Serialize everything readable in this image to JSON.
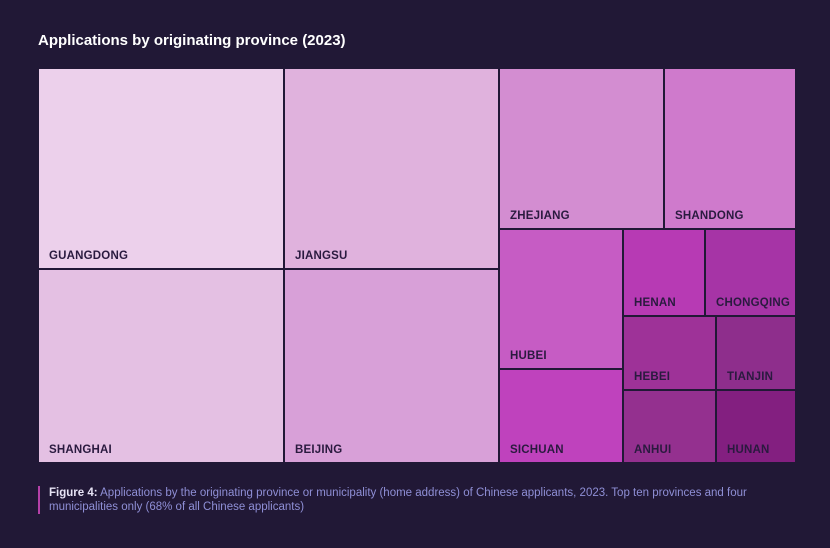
{
  "title": "Applications by originating province (2023)",
  "chart_data": {
    "type": "treemap",
    "title": "Applications by originating province (2023)",
    "unit": "relative share of Chinese applicants (approximate, estimated from tile areas)",
    "items": [
      {
        "name": "GUANGDONG",
        "value": 25.6,
        "color": "#ecd0eb"
      },
      {
        "name": "SHANGHAI",
        "value": 20.7,
        "color": "#e4c0e3"
      },
      {
        "name": "JIANGSU",
        "value": 22.4,
        "color": "#e0b2dd"
      },
      {
        "name": "BEIJING",
        "value": 18.2,
        "color": "#d8a0d8"
      },
      {
        "name": "ZHEJIANG",
        "value": 10.6,
        "color": "#d38dd1"
      },
      {
        "name": "SHANDONG",
        "value": 8.4,
        "color": "#cf7acc"
      },
      {
        "name": "HUBEI",
        "value": 7.1,
        "color": "#c65cc4"
      },
      {
        "name": "SICHUAN",
        "value": 4.9,
        "color": "#bf42bd"
      },
      {
        "name": "HENAN",
        "value": 4.3,
        "color": "#b73ab4"
      },
      {
        "name": "CHONGQING",
        "value": 3.8,
        "color": "#a634a6"
      },
      {
        "name": "HEBEI",
        "value": 3.1,
        "color": "#9e3298"
      },
      {
        "name": "ANHUI",
        "value": 2.7,
        "color": "#94308f"
      },
      {
        "name": "TIANJIN",
        "value": 2.7,
        "color": "#8e2e8c"
      },
      {
        "name": "HUNAN",
        "value": 2.6,
        "color": "#831f80"
      }
    ]
  },
  "caption": {
    "label": "Figure 4:",
    "text": "Applications by the originating province or municipality (home address) of Chinese applicants, 2023. Top ten provinces and four municipalities only (68% of all Chinese applicants)"
  }
}
